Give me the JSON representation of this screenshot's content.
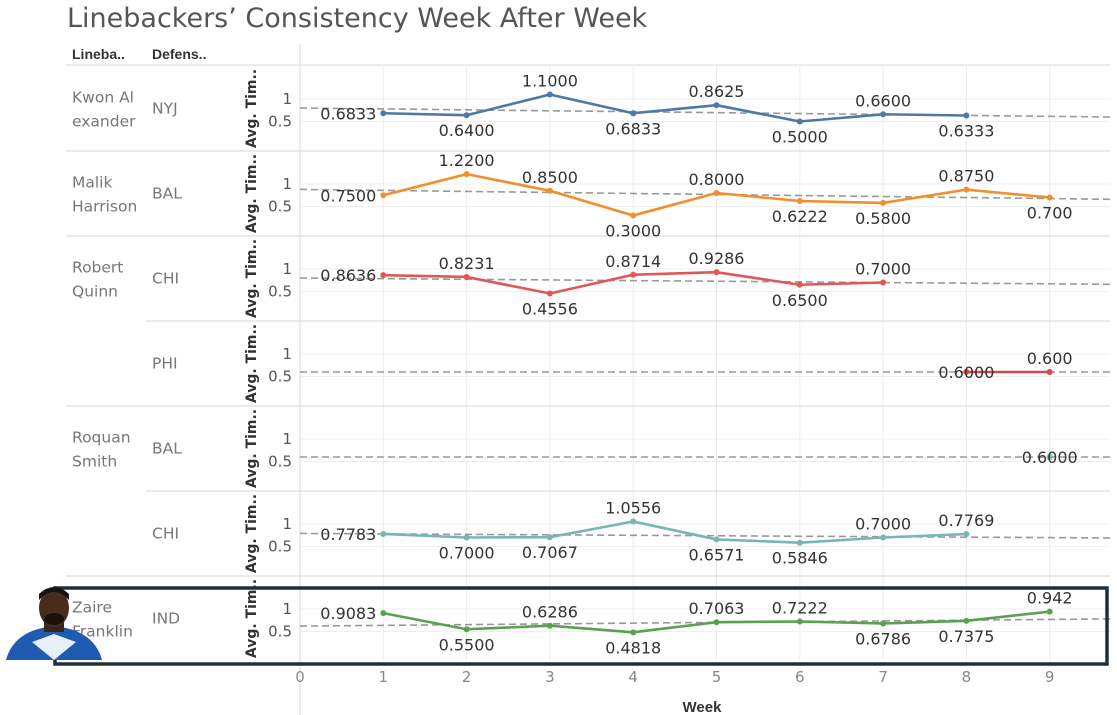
{
  "chart_data": {
    "type": "line",
    "title": "Linebackers’ Consistency Week After Week",
    "headers": {
      "linebacker": "Lineba..",
      "defense": "Defens.."
    },
    "xlabel": "Week",
    "ylabel": "Avg. Tim..",
    "x_ticks": [
      "0",
      "1",
      "2",
      "3",
      "4",
      "5",
      "6",
      "7",
      "8",
      "9"
    ],
    "xlim": [
      0,
      9.7
    ],
    "ylim": [
      0,
      1.3
    ],
    "y_ticks": [
      "0.5",
      "1"
    ],
    "grid": true,
    "trend_lines": true,
    "highlighted_panel": 6,
    "panels": [
      {
        "linebacker": "Kwon Al exander",
        "defense": "NYJ",
        "color": "#4e79a7",
        "points": [
          {
            "x": 1,
            "y": 0.6833,
            "label": "0.6833"
          },
          {
            "x": 2,
            "y": 0.64,
            "label": "0.6400"
          },
          {
            "x": 3,
            "y": 1.1,
            "label": "1.1000"
          },
          {
            "x": 4,
            "y": 0.6833,
            "label": "0.6833"
          },
          {
            "x": 5,
            "y": 0.8625,
            "label": "0.8625"
          },
          {
            "x": 6,
            "y": 0.5,
            "label": "0.5000"
          },
          {
            "x": 7,
            "y": 0.66,
            "label": "0.6600"
          },
          {
            "x": 8,
            "y": 0.6333,
            "label": "0.6333"
          }
        ],
        "trend": [
          0.8,
          0.6
        ]
      },
      {
        "linebacker": "Malik Harrison",
        "defense": "BAL",
        "color": "#f28e2b",
        "points": [
          {
            "x": 1,
            "y": 0.75,
            "label": "0.7500"
          },
          {
            "x": 2,
            "y": 1.22,
            "label": "1.2200"
          },
          {
            "x": 3,
            "y": 0.85,
            "label": "0.8500"
          },
          {
            "x": 4,
            "y": 0.3,
            "label": "0.3000"
          },
          {
            "x": 5,
            "y": 0.8,
            "label": "0.8000"
          },
          {
            "x": 6,
            "y": 0.6222,
            "label": "0.6222"
          },
          {
            "x": 7,
            "y": 0.58,
            "label": "0.5800"
          },
          {
            "x": 8,
            "y": 0.875,
            "label": "0.8750"
          },
          {
            "x": 9,
            "y": 0.7,
            "label": "0.700"
          }
        ],
        "trend": [
          0.88,
          0.66
        ]
      },
      {
        "linebacker": "Robert Quinn",
        "defense": "CHI",
        "color": "#e15759",
        "points": [
          {
            "x": 1,
            "y": 0.8636,
            "label": "0.8636"
          },
          {
            "x": 2,
            "y": 0.8231,
            "label": "0.8231"
          },
          {
            "x": 3,
            "y": 0.4556,
            "label": "0.4556"
          },
          {
            "x": 4,
            "y": 0.8714,
            "label": "0.8714"
          },
          {
            "x": 5,
            "y": 0.9286,
            "label": "0.9286"
          },
          {
            "x": 6,
            "y": 0.65,
            "label": "0.6500"
          },
          {
            "x": 7,
            "y": 0.7,
            "label": "0.7000"
          }
        ],
        "trend": [
          0.8,
          0.66
        ]
      },
      {
        "linebacker": "",
        "defense": "PHI",
        "color": "#d1484b",
        "points": [
          {
            "x": 8,
            "y": 0.6,
            "label": "0.6000"
          },
          {
            "x": 9,
            "y": 0.6,
            "label": "0.600"
          }
        ],
        "trend": [
          0.6,
          0.6
        ]
      },
      {
        "linebacker": "Roquan Smith",
        "defense": "BAL",
        "color": "#76b7b2",
        "points": [
          {
            "x": 9,
            "y": 0.6,
            "label": "0.6000"
          }
        ],
        "trend": [
          0.6,
          0.6
        ]
      },
      {
        "linebacker": "",
        "defense": "CHI",
        "color": "#76b7b2",
        "points": [
          {
            "x": 1,
            "y": 0.7783,
            "label": "0.7783"
          },
          {
            "x": 2,
            "y": 0.7,
            "label": "0.7000"
          },
          {
            "x": 3,
            "y": 0.7067,
            "label": "0.7067"
          },
          {
            "x": 4,
            "y": 1.0556,
            "label": "1.0556"
          },
          {
            "x": 5,
            "y": 0.6571,
            "label": "0.6571"
          },
          {
            "x": 6,
            "y": 0.5846,
            "label": "0.5846"
          },
          {
            "x": 7,
            "y": 0.7,
            "label": "0.7000"
          },
          {
            "x": 8,
            "y": 0.7769,
            "label": "0.7769"
          }
        ],
        "trend": [
          0.79,
          0.69
        ]
      },
      {
        "linebacker": "Zaire Franklin",
        "defense": "IND",
        "color": "#59a14f",
        "points": [
          {
            "x": 1,
            "y": 0.9083,
            "label": "0.9083"
          },
          {
            "x": 2,
            "y": 0.55,
            "label": "0.5500"
          },
          {
            "x": 3,
            "y": 0.6286,
            "label": "0.6286"
          },
          {
            "x": 4,
            "y": 0.4818,
            "label": "0.4818"
          },
          {
            "x": 5,
            "y": 0.7063,
            "label": "0.7063"
          },
          {
            "x": 6,
            "y": 0.7222,
            "label": "0.7222"
          },
          {
            "x": 7,
            "y": 0.6786,
            "label": "0.6786"
          },
          {
            "x": 8,
            "y": 0.7375,
            "label": "0.7375"
          },
          {
            "x": 9,
            "y": 0.942,
            "label": "0.942"
          }
        ],
        "trend": [
          0.62,
          0.78
        ]
      }
    ]
  },
  "highlight_color": "#1e2e3e",
  "player_photo_icon": "player-headshot"
}
